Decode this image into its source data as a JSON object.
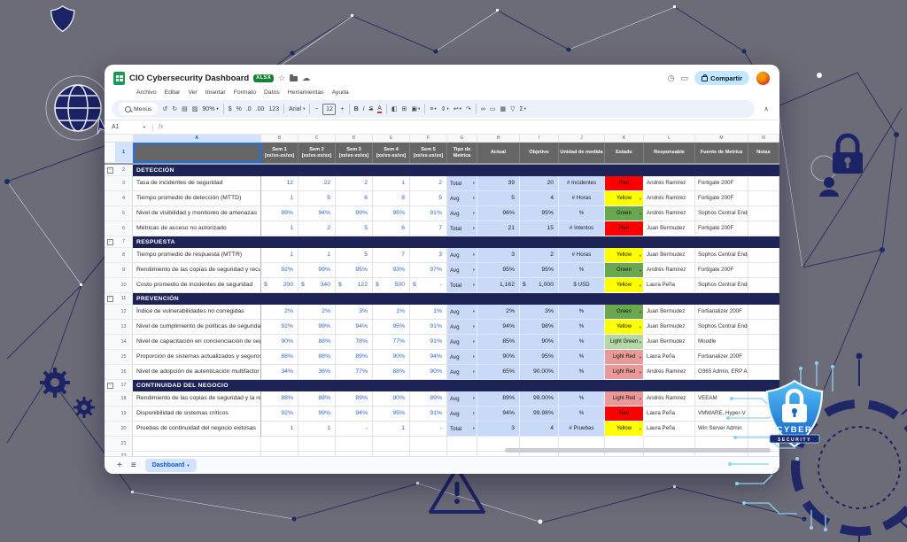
{
  "window": {
    "title": "CIO Cybersecurity Dashboard",
    "badge": "XLSX",
    "icons": {
      "star": "☆",
      "cloud": "☁",
      "history": "◷",
      "comment": "▭"
    },
    "share_label": "Compartir",
    "menu_items": [
      "Archivo",
      "Editar",
      "Ver",
      "Insertar",
      "Formato",
      "Datos",
      "Herramientas",
      "Ayuda"
    ],
    "toolbar": {
      "menus_label": "Menús",
      "caret_glyph": "▾",
      "collapse": "∧",
      "items": [
        {
          "type": "search"
        },
        {
          "type": "icon",
          "name": "undo-icon",
          "glyph": "↺"
        },
        {
          "type": "icon",
          "name": "redo-icon",
          "glyph": "↻"
        },
        {
          "type": "icon",
          "name": "print-icon",
          "glyph": "▤"
        },
        {
          "type": "icon",
          "name": "paint-format-icon",
          "glyph": "▨"
        },
        {
          "type": "label",
          "name": "zoom-select",
          "text": "90%",
          "caret": true
        },
        {
          "type": "divider"
        },
        {
          "type": "icon",
          "name": "currency-format-icon",
          "glyph": "$"
        },
        {
          "type": "icon",
          "name": "percent-format-icon",
          "glyph": "%"
        },
        {
          "type": "icon",
          "name": "decrease-decimals-icon",
          "glyph": ".0"
        },
        {
          "type": "icon",
          "name": "increase-decimals-icon",
          "glyph": ".00"
        },
        {
          "type": "icon",
          "name": "number-format-icon",
          "glyph": "123"
        },
        {
          "type": "divider"
        },
        {
          "type": "label",
          "name": "font-select",
          "text": "Arial",
          "caret": true
        },
        {
          "type": "divider"
        },
        {
          "type": "icon",
          "name": "decrease-font-size-icon",
          "glyph": "−"
        },
        {
          "type": "sizebox",
          "name": "font-size-input",
          "text": "12"
        },
        {
          "type": "icon",
          "name": "increase-font-size-icon",
          "glyph": "+"
        },
        {
          "type": "divider"
        },
        {
          "type": "icon",
          "name": "bold-icon",
          "glyph": "B",
          "style": "bold"
        },
        {
          "type": "icon",
          "name": "italic-icon",
          "glyph": "I",
          "style": "italic"
        },
        {
          "type": "icon",
          "name": "strikethrough-icon",
          "glyph": "S",
          "style": "strike"
        },
        {
          "type": "icon",
          "name": "text-color-icon",
          "glyph": "A",
          "style": "acolor"
        },
        {
          "type": "divider"
        },
        {
          "type": "icon",
          "name": "fill-color-icon",
          "glyph": "◧"
        },
        {
          "type": "icon",
          "name": "borders-icon",
          "glyph": "⊞"
        },
        {
          "type": "icon",
          "name": "merge-cells-icon",
          "glyph": "▣",
          "caret": true
        },
        {
          "type": "divider"
        },
        {
          "type": "icon",
          "name": "horizontal-align-icon",
          "glyph": "≡",
          "caret": true
        },
        {
          "type": "icon",
          "name": "vertical-align-icon",
          "glyph": "⇕",
          "caret": true
        },
        {
          "type": "icon",
          "name": "text-wrap-icon",
          "glyph": "↩",
          "caret": true
        },
        {
          "type": "icon",
          "name": "text-rotate-icon",
          "glyph": "↷"
        },
        {
          "type": "divider"
        },
        {
          "type": "icon",
          "name": "insert-link-icon",
          "glyph": "∞"
        },
        {
          "type": "icon",
          "name": "insert-comment-icon",
          "glyph": "▭"
        },
        {
          "type": "icon",
          "name": "insert-chart-icon",
          "glyph": "▦"
        },
        {
          "type": "icon",
          "name": "create-filter-icon",
          "glyph": "▽"
        },
        {
          "type": "icon",
          "name": "functions-icon",
          "glyph": "Σ",
          "caret": true
        }
      ]
    },
    "name_box": "A1",
    "fx_label": "fx",
    "bottombar": {
      "add": "+",
      "all_sheets": "≡",
      "tab": "Dashboard",
      "caret": "▾"
    }
  },
  "grid": {
    "col_letters": [
      "A",
      "B",
      "C",
      "D",
      "E",
      "F",
      "G",
      "H",
      "I",
      "J",
      "K",
      "L",
      "M",
      "N"
    ],
    "sem_headers": [
      {
        "t": "Sem 1",
        "d": "[xx/xx-xx/xx]"
      },
      {
        "t": "Sem 2",
        "d": "[xx/xx-xx/xx]"
      },
      {
        "t": "Sem 3",
        "d": "[xx/xx-xx/xx]"
      },
      {
        "t": "Sem 4",
        "d": "[xx/xx-xx/xx]"
      },
      {
        "t": "Sem 5",
        "d": "[xx/xx-xx/xx]"
      }
    ],
    "meta_headers": [
      "Tipo de Metrica",
      "Actual",
      "Objetivo",
      "Unidad de medida",
      "Estado",
      "Responsable",
      "Fuente de Metrica",
      "Notas"
    ],
    "sections": [
      {
        "row": 2,
        "title": "DETECCIÓN",
        "items": [
          {
            "row": 3,
            "name": "Tasa de incidentes de seguridad",
            "sems": [
              "12",
              "22",
              "2",
              "1",
              "2"
            ],
            "tipo": "Total",
            "actual": "39",
            "objetivo": "20",
            "unidad": "# Incidentes",
            "estado": "Red",
            "responsable": "Andrés Ramirez",
            "fuente": "Fortigate 200F",
            "notas": ""
          },
          {
            "row": 4,
            "name": "Tiempo promedio de detección (MTTD)",
            "sems": [
              "1",
              "5",
              "6",
              "8",
              "5"
            ],
            "tipo": "Avg",
            "actual": "5",
            "objetivo": "4",
            "unidad": "# Horas",
            "estado": "Yellow",
            "responsable": "Andrés Ramirez",
            "fuente": "Fortigate 200F",
            "notas": ""
          },
          {
            "row": 5,
            "name": "Nivel de visibilidad y monitoreo de amenazas",
            "sems": [
              "99%",
              "94%",
              "99%",
              "95%",
              "91%"
            ],
            "tipo": "Avg",
            "actual": "96%",
            "objetivo": "95%",
            "unidad": "%",
            "estado": "Green",
            "responsable": "Andrés Ramirez",
            "fuente": "Sophos Central Endpoint",
            "notas": ""
          },
          {
            "row": 6,
            "name": "Métricas de acceso no autorizado",
            "sems": [
              "1",
              "2",
              "5",
              "6",
              "7"
            ],
            "tipo": "Total",
            "actual": "21",
            "objetivo": "15",
            "unidad": "# Intentos",
            "estado": "Red",
            "responsable": "Juan Bermudez",
            "fuente": "Fortigate 200F",
            "notas": ""
          }
        ]
      },
      {
        "row": 7,
        "title": "RESPUESTA",
        "items": [
          {
            "row": 8,
            "name": "Tiempo promedio de respuesta (MTTR)",
            "sems": [
              "1",
              "1",
              "5",
              "7",
              "3"
            ],
            "tipo": "Avg",
            "actual": "3",
            "objetivo": "2",
            "unidad": "# Horas",
            "estado": "Yellow",
            "responsable": "Juan Bermudez",
            "fuente": "Sophos Central Endpoint",
            "notas": ""
          },
          {
            "row": 9,
            "name": "Rendimiento de las copias de seguridad y recuperación",
            "sems": [
              "92%",
              "99%",
              "95%",
              "93%",
              "97%"
            ],
            "tipo": "Avg",
            "actual": "95%",
            "objetivo": "95%",
            "unidad": "%",
            "estado": "Green",
            "responsable": "Andrés Ramirez",
            "fuente": "Fortigate 200F",
            "notas": ""
          },
          {
            "row": 10,
            "name": "Costo promedio de incidentes de seguridad",
            "money": true,
            "sems": [
              "200",
              "340",
              "122",
              "500",
              "-"
            ],
            "tipo": "Total",
            "actual": "1,162",
            "objetivo": "1,000",
            "objetivo_prefix": "$",
            "unidad": "$ USD",
            "estado": "Yellow",
            "responsable": "Laura Peña",
            "fuente": "Sophos Central Endpoint",
            "notas": ""
          }
        ]
      },
      {
        "row": 11,
        "title": "PREVENCIÓN",
        "items": [
          {
            "row": 12,
            "name": "Índice de vulnerabilidades no corregidas",
            "sems": [
              "2%",
              "2%",
              "3%",
              "1%",
              "1%"
            ],
            "tipo": "Avg",
            "actual": "2%",
            "objetivo": "3%",
            "unidad": "%",
            "estado": "Green",
            "responsable": "Juan Bermudez",
            "fuente": "Fortianalizer 200F",
            "notas": ""
          },
          {
            "row": 13,
            "name": "Nivel de cumplimiento de políticas de seguridad",
            "sems": [
              "92%",
              "99%",
              "94%",
              "95%",
              "91%"
            ],
            "tipo": "Avg",
            "actual": "94%",
            "objetivo": "98%",
            "unidad": "%",
            "estado": "Yellow",
            "responsable": "Juan Bermudez",
            "fuente": "Sophos Central Endpoint",
            "notas": ""
          },
          {
            "row": 14,
            "name": "Nivel de capacitación en concienciación de seguridad",
            "sems": [
              "90%",
              "88%",
              "78%",
              "77%",
              "91%"
            ],
            "tipo": "Avg",
            "actual": "85%",
            "objetivo": "90%",
            "unidad": "%",
            "estado": "Light Green",
            "responsable": "Juan Bermudez",
            "fuente": "Moodle",
            "notas": ""
          },
          {
            "row": 15,
            "name": "Proporción de sistemas actualizados y seguros",
            "sems": [
              "88%",
              "88%",
              "89%",
              "90%",
              "94%"
            ],
            "tipo": "Avg",
            "actual": "90%",
            "objetivo": "95%",
            "unidad": "%",
            "estado": "Light Red",
            "responsable": "Laura Peña",
            "fuente": "Fortianalizer 200F",
            "notas": ""
          },
          {
            "row": 16,
            "name": "Nivel de adopción de autenticación multifactor (MFA)",
            "sems": [
              "34%",
              "36%",
              "77%",
              "88%",
              "90%"
            ],
            "tipo": "Avg",
            "actual": "65%",
            "objetivo": "90.00%",
            "unidad": "%",
            "estado": "Light Red",
            "responsable": "Andrés Ramirez",
            "fuente": "O365 Admin, ERP Admin,",
            "notas": ""
          }
        ]
      },
      {
        "row": 17,
        "title": "CONTINUIDAD DEL NEGOCIO",
        "items": [
          {
            "row": 18,
            "name": "Rendimiento de las copias de seguridad y la recuperación",
            "sems": [
              "88%",
              "88%",
              "89%",
              "90%",
              "89%"
            ],
            "tipo": "Avg",
            "actual": "89%",
            "objetivo": "99.00%",
            "unidad": "%",
            "estado": "Light Red",
            "responsable": "Andrés Ramirez",
            "fuente": "VEEAM",
            "notas": ""
          },
          {
            "row": 19,
            "name": "Disponibilidad de sistemas críticos",
            "sems": [
              "92%",
              "99%",
              "94%",
              "95%",
              "91%"
            ],
            "tipo": "Avg",
            "actual": "94%",
            "objetivo": "99.98%",
            "unidad": "%",
            "estado": "Red",
            "responsable": "Laura Peña",
            "fuente": "VMWARE, Hyper-V",
            "notas": ""
          },
          {
            "row": 20,
            "name": "Pruebas de continuidad del negocio exitosas",
            "sems": [
              "1",
              "1",
              "-",
              "1",
              "-"
            ],
            "tipo": "Total",
            "actual": "3",
            "objetivo": "4",
            "unidad": "# Pruebas",
            "estado": "Yellow",
            "responsable": "Laura Peña",
            "fuente": "Win Server Admin",
            "notas": ""
          }
        ]
      }
    ],
    "empty_rows": [
      21,
      22
    ]
  },
  "badge": {
    "line1": "CYBER",
    "line2": "SECURITY"
  },
  "colors": {
    "accent": "#1a73e8",
    "section_bg": "#1e2356",
    "header_bg": "#666666",
    "metric_bg": "#c9daf8",
    "value_blue": "#2e64c2",
    "status": {
      "Red": "#ff0000",
      "Yellow": "#ffff00",
      "Green": "#6aa84f",
      "Light Green": "#b6d7a8",
      "Light Red": "#ea9999"
    }
  }
}
